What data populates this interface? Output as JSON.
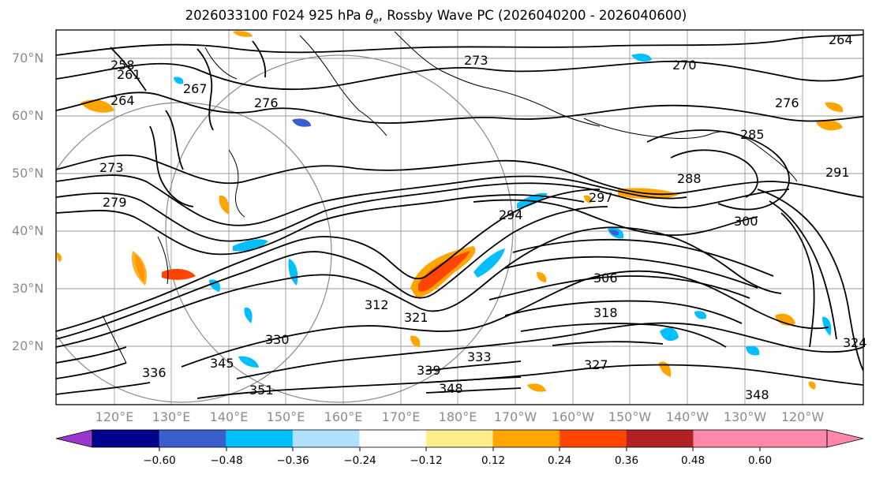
{
  "title": {
    "init": "2026033100",
    "forecast": "F024",
    "level": "925 hPa",
    "variable_symbol": "θ",
    "variable_subscript": "e",
    "overlay": "Rossby Wave PC",
    "period": "2026040200 - 2026040600"
  },
  "map": {
    "projection": "cylindrical",
    "lon_range": [
      "110°E",
      "115°W"
    ],
    "lat_range": [
      "10°N",
      "75°N"
    ],
    "grid": true,
    "lat_labels": [
      "70°N",
      "60°N",
      "50°N",
      "40°N",
      "30°N",
      "20°N"
    ],
    "lon_labels": [
      "120°E",
      "130°E",
      "140°E",
      "150°E",
      "160°E",
      "170°E",
      "180°E",
      "170°W",
      "160°W",
      "150°W",
      "140°W",
      "130°W",
      "120°W"
    ],
    "contour_variable": "925 hPa θe",
    "contour_labels": [
      "258",
      "261",
      "264",
      "267",
      "273",
      "276",
      "273",
      "279",
      "285",
      "288",
      "291",
      "294",
      "297",
      "300",
      "306",
      "312",
      "318",
      "321",
      "324",
      "327",
      "330",
      "333",
      "336",
      "339",
      "345",
      "348",
      "351",
      "264",
      "270",
      "276",
      "348"
    ],
    "land_color": "#000000",
    "contour_color": "#000000"
  },
  "colorbar": {
    "extend": "both",
    "ticks": [
      "−0.60",
      "−0.48",
      "−0.36",
      "−0.24",
      "−0.12",
      "0.12",
      "0.24",
      "0.36",
      "0.48",
      "0.60"
    ],
    "colors": [
      "#9b35cf",
      "#00008b",
      "#3a5fcd",
      "#00bfff",
      "#b0e2ff",
      "#ffffff",
      "#ffec8b",
      "#ffa500",
      "#ff4500",
      "#b22222",
      "#ff88aa",
      "#ff88aa"
    ]
  }
}
